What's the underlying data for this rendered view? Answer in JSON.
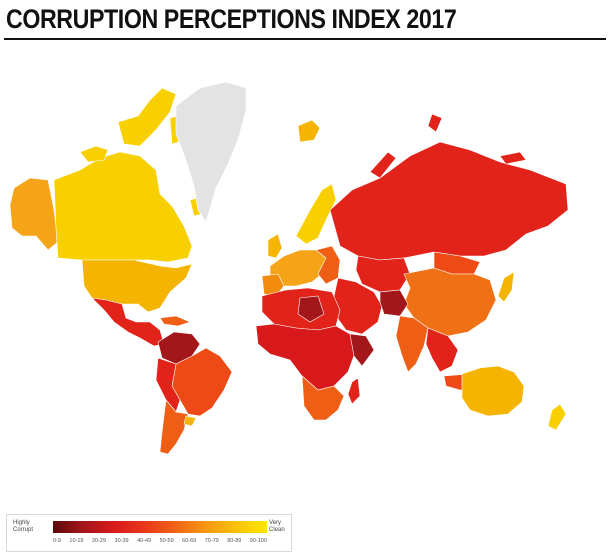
{
  "title": "CORRUPTION PERCEPTIONS INDEX 2017",
  "legend": {
    "left_label": [
      "Highly",
      "Corrupt"
    ],
    "right_label": [
      "Very",
      "Clean"
    ],
    "ticks": [
      "0-9",
      "10-19",
      "20-29",
      "30-39",
      "40-49",
      "50-59",
      "60-69",
      "70-79",
      "80-89",
      "90-100"
    ]
  },
  "colors": {
    "very_clean": "#f8d000",
    "clean": "#f5b400",
    "mid": "#f28c0f",
    "low": "#ee5f15",
    "corrupt": "#e2231a",
    "very_corrupt": "#a3161a",
    "no_data": "#e3e3e3"
  }
}
